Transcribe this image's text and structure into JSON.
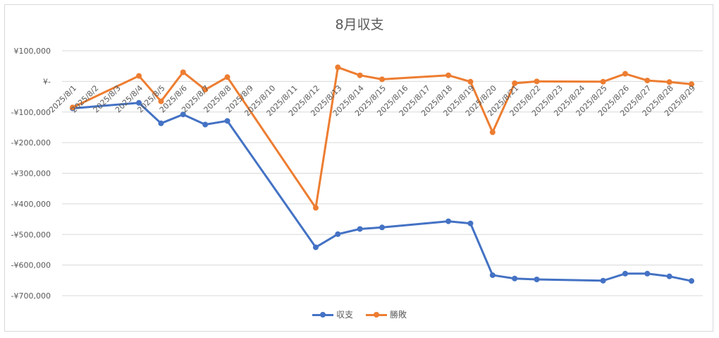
{
  "chart_data": {
    "type": "line",
    "title": "8月収支",
    "xlabel": "",
    "ylabel": "",
    "ylim": [
      -700000,
      100000
    ],
    "yticks": [
      {
        "value": 100000,
        "label": "¥100,000"
      },
      {
        "value": 0,
        "label": "¥-"
      },
      {
        "value": -100000,
        "label": "-¥100,000"
      },
      {
        "value": -200000,
        "label": "-¥200,000"
      },
      {
        "value": -300000,
        "label": "-¥300,000"
      },
      {
        "value": -400000,
        "label": "-¥400,000"
      },
      {
        "value": -500000,
        "label": "-¥500,000"
      },
      {
        "value": -600000,
        "label": "-¥600,000"
      },
      {
        "value": -700000,
        "label": "-¥700,000"
      }
    ],
    "categories": [
      "2025/8/1",
      "2025/8/2",
      "2025/8/3",
      "2025/8/4",
      "2025/8/5",
      "2025/8/6",
      "2025/8/7",
      "2025/8/8",
      "2025/8/9",
      "2025/8/10",
      "2025/8/11",
      "2025/8/12",
      "2025/8/13",
      "2025/8/14",
      "2025/8/15",
      "2025/8/16",
      "2025/8/17",
      "2025/8/18",
      "2025/8/19",
      "2025/8/20",
      "2025/8/21",
      "2025/8/22",
      "2025/8/23",
      "2025/8/24",
      "2025/8/25",
      "2025/8/26",
      "2025/8/27",
      "2025/8/28",
      "2025/8/29"
    ],
    "series": [
      {
        "name": "収支",
        "color": "#4472c4",
        "values": [
          -88000,
          null,
          null,
          -70000,
          -137000,
          -108000,
          -141000,
          -129000,
          null,
          null,
          null,
          -542000,
          -499000,
          -482000,
          -477000,
          null,
          null,
          -457000,
          -464000,
          -633000,
          -644000,
          -647000,
          null,
          null,
          -651000,
          -628000,
          -628000,
          -637000,
          -652000
        ]
      },
      {
        "name": "勝敗",
        "color": "#ed7d31",
        "values": [
          -85000,
          null,
          null,
          18000,
          -65000,
          30000,
          -27000,
          14000,
          null,
          null,
          null,
          -413000,
          46000,
          20000,
          7000,
          null,
          null,
          20000,
          -1000,
          -166000,
          -6000,
          0,
          null,
          null,
          -1000,
          25000,
          3000,
          -2000,
          -9000
        ]
      }
    ],
    "grid": "horizontal",
    "legend_position": "bottom"
  }
}
